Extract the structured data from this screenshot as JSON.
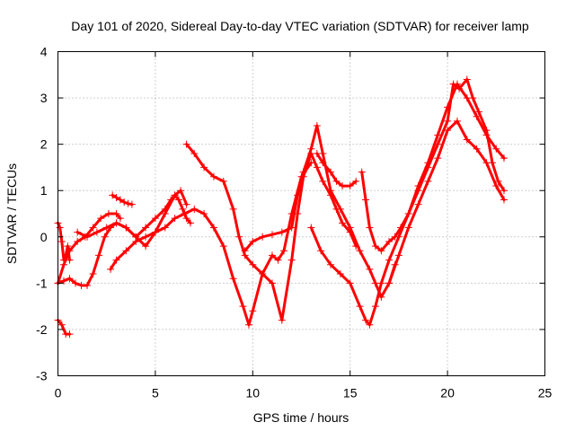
{
  "chart_data": {
    "type": "scatter",
    "title": "Day 101 of 2020, Sidereal Day-to-day VTEC variation (SDTVAR) for receiver lamp",
    "xlabel": "GPS time / hours",
    "ylabel": "SDTVAR / TECUs",
    "xlim": [
      0,
      25
    ],
    "ylim": [
      -3,
      4
    ],
    "xticks": [
      "0",
      "5",
      "10",
      "15",
      "20",
      "25"
    ],
    "yticks": [
      "-3",
      "-2",
      "-1",
      "0",
      "1",
      "2",
      "3",
      "4"
    ],
    "grid": true,
    "legend": "none",
    "marker": "plus",
    "color": "#ff0000",
    "series": [
      {
        "x": [
          0.0,
          0.2,
          0.4,
          0.6
        ],
        "y": [
          -1.8,
          -1.9,
          -2.1,
          -2.1
        ]
      },
      {
        "x": [
          0.0,
          0.1,
          0.2,
          0.3,
          0.4,
          0.5,
          0.6
        ],
        "y": [
          0.3,
          0.2,
          -0.1,
          -0.5,
          -0.4,
          -0.2,
          -0.5
        ]
      },
      {
        "x": [
          0.0,
          0.3,
          0.6,
          1.0,
          1.4,
          1.8,
          2.2,
          2.6,
          3.0,
          3.2
        ],
        "y": [
          -1.0,
          -0.6,
          -0.3,
          -0.1,
          0.0,
          0.2,
          0.4,
          0.5,
          0.5,
          0.4
        ]
      },
      {
        "x": [
          0.0,
          0.3,
          0.6,
          0.9,
          1.2,
          1.5,
          1.8,
          2.1,
          2.4,
          2.7,
          3.0,
          3.5,
          4.0,
          4.5,
          5.0,
          5.5,
          5.8,
          6.0,
          6.2,
          6.4,
          6.6,
          6.8
        ],
        "y": [
          -1.0,
          -0.95,
          -0.9,
          -1.0,
          -1.05,
          -1.05,
          -0.8,
          -0.4,
          0.0,
          0.2,
          0.3,
          0.2,
          0.0,
          0.2,
          0.4,
          0.6,
          0.8,
          0.9,
          0.8,
          0.6,
          0.4,
          0.3
        ]
      },
      {
        "x": [
          1.0,
          1.5,
          2.0,
          2.5,
          3.0,
          3.5,
          4.0,
          4.5,
          5.0,
          5.5,
          6.0,
          6.3,
          6.6
        ],
        "y": [
          0.1,
          0.0,
          0.1,
          0.2,
          0.3,
          0.2,
          0.0,
          -0.2,
          0.1,
          0.5,
          0.9,
          1.0,
          0.7
        ]
      },
      {
        "x": [
          2.8,
          3.0,
          3.2,
          3.4,
          3.6,
          3.8
        ],
        "y": [
          0.9,
          0.85,
          0.8,
          0.75,
          0.72,
          0.7
        ]
      },
      {
        "x": [
          2.7,
          3.0,
          3.5,
          4.0,
          4.5,
          5.0,
          5.5,
          6.0,
          6.5,
          7.0,
          7.5,
          8.0,
          8.5,
          9.0,
          9.5,
          9.8,
          10.0,
          10.5,
          11.0,
          11.3,
          11.6,
          12.0,
          12.5,
          13.0
        ],
        "y": [
          -0.7,
          -0.5,
          -0.3,
          -0.1,
          0.0,
          0.1,
          0.2,
          0.4,
          0.5,
          0.6,
          0.5,
          0.2,
          -0.2,
          -0.9,
          -1.5,
          -1.9,
          -1.6,
          -0.8,
          -0.4,
          -0.5,
          -0.3,
          0.5,
          1.3,
          1.6
        ]
      },
      {
        "x": [
          6.6,
          7.0,
          7.5,
          8.0,
          8.5,
          9.0,
          9.3,
          9.6,
          10.0,
          10.5,
          11.0,
          11.5,
          12.0,
          12.3,
          12.6,
          13.0,
          13.3,
          13.6,
          14.0,
          14.3,
          14.6,
          15.0,
          15.3
        ],
        "y": [
          2.0,
          1.8,
          1.5,
          1.3,
          1.2,
          0.6,
          0.0,
          -0.4,
          -0.6,
          -0.8,
          -1.0,
          -1.8,
          -0.5,
          0.5,
          1.3,
          1.8,
          1.5,
          1.2,
          0.9,
          0.6,
          0.3,
          0.1,
          -0.2
        ]
      },
      {
        "x": [
          9.6,
          10.0,
          10.5,
          11.0,
          11.5,
          12.0,
          12.3,
          12.6,
          13.0,
          13.3,
          13.6,
          14.0,
          14.5,
          15.0,
          15.5,
          16.0,
          16.3,
          16.6,
          17.0,
          17.3
        ],
        "y": [
          -0.3,
          -0.1,
          0.0,
          0.05,
          0.1,
          0.2,
          0.9,
          1.4,
          1.9,
          2.4,
          1.8,
          1.0,
          0.6,
          0.2,
          -0.3,
          -0.7,
          -1.0,
          -1.3,
          -1.0,
          -0.6
        ]
      },
      {
        "x": [
          13.3,
          13.6,
          14.0,
          14.3,
          14.6,
          15.0,
          15.3
        ],
        "y": [
          1.8,
          1.6,
          1.4,
          1.2,
          1.1,
          1.1,
          1.2
        ]
      },
      {
        "x": [
          13.0,
          13.5,
          14.0,
          14.5,
          15.0,
          15.5,
          15.8,
          16.0,
          16.3,
          16.6,
          17.0,
          17.5,
          18.0,
          18.5,
          19.0,
          19.5,
          20.0,
          20.5,
          21.0,
          21.5,
          22.0,
          22.5,
          22.9
        ],
        "y": [
          0.2,
          -0.3,
          -0.6,
          -0.8,
          -1.0,
          -1.5,
          -1.8,
          -1.9,
          -1.5,
          -1.0,
          -0.5,
          0.0,
          0.5,
          1.1,
          1.6,
          2.2,
          2.8,
          3.3,
          3.0,
          2.6,
          2.2,
          1.9,
          1.7
        ]
      },
      {
        "x": [
          15.6,
          15.8,
          16.0,
          16.3,
          16.6,
          17.0,
          17.3,
          17.6,
          18.0,
          18.5,
          19.0,
          19.5,
          20.0,
          20.3,
          20.6,
          21.0,
          21.3,
          21.6,
          22.0,
          22.3,
          22.6,
          22.9
        ],
        "y": [
          1.4,
          0.8,
          0.2,
          -0.2,
          -0.3,
          -0.1,
          0.0,
          0.2,
          0.5,
          1.0,
          1.5,
          2.0,
          2.5,
          3.3,
          3.2,
          3.4,
          3.0,
          2.7,
          2.3,
          1.6,
          1.2,
          1.0
        ]
      },
      {
        "x": [
          17.0,
          17.5,
          18.0,
          18.5,
          19.0,
          19.5,
          20.0,
          20.5,
          21.0,
          21.5,
          22.0,
          22.5,
          22.9
        ],
        "y": [
          -1.0,
          -0.4,
          0.2,
          0.7,
          1.2,
          1.7,
          2.3,
          2.5,
          2.1,
          1.9,
          1.6,
          1.1,
          0.8
        ]
      }
    ]
  }
}
